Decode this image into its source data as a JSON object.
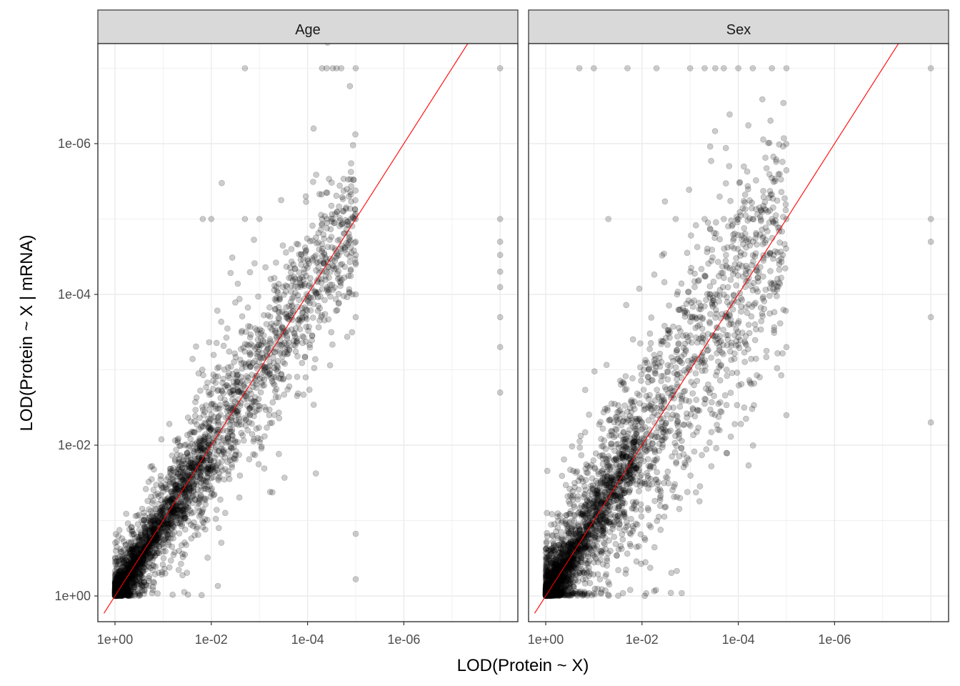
{
  "chart_data": {
    "type": "scatter",
    "xlabel": "LOD(Protein ~ X)",
    "ylabel": "LOD(Protein ~ X | mRNA)",
    "x_scale": "log10_reversed",
    "y_scale": "log10_reversed",
    "x_ticks": [
      "1e+00",
      "1e-02",
      "1e-04",
      "1e-06"
    ],
    "y_ticks": [
      "1e+00",
      "1e-02",
      "1e-04",
      "1e-06"
    ],
    "xlim": [
      1.7,
      1.7e-08
    ],
    "ylim": [
      2.5,
      3.3e-08
    ],
    "grid": true,
    "reference_line": {
      "slope": 1,
      "intercept": 0,
      "color": "#ff0000"
    },
    "point_color": "#000000",
    "point_alpha": 0.2,
    "panels": [
      {
        "title": "Age",
        "clusters": [
          {
            "x_range": [
              1,
              1e-05
            ],
            "y_center_ratio": 1,
            "spread_decades": 0.45,
            "count": 1900
          },
          {
            "x_range": [
              1,
              0.01
            ],
            "y_center_ratio": 1,
            "spread_decades": 0.2,
            "count": 700
          },
          {
            "x_range": [
              1,
              1e-05
            ],
            "y_center_ratio": 1,
            "spread_decades": 0.9,
            "count": 450
          }
        ],
        "extreme_points": [
          {
            "x": 0.002,
            "y": 1e-07
          },
          {
            "x": 2e-05,
            "y": 1e-07
          },
          {
            "x": 2.5e-05,
            "y": 1e-07
          },
          {
            "x": 3e-05,
            "y": 1e-07
          },
          {
            "x": 4e-05,
            "y": 1e-07
          },
          {
            "x": 5e-05,
            "y": 1e-07
          },
          {
            "x": 1e-05,
            "y": 1e-07
          },
          {
            "x": 1e-08,
            "y": 1e-07
          },
          {
            "x": 0.01,
            "y": 1e-05
          },
          {
            "x": 0.015,
            "y": 1e-05
          },
          {
            "x": 0.002,
            "y": 1e-05
          },
          {
            "x": 0.001,
            "y": 1e-05
          },
          {
            "x": 3e-05,
            "y": 1e-05
          },
          {
            "x": 4e-05,
            "y": 1e-05
          },
          {
            "x": 5e-05,
            "y": 1e-05
          },
          {
            "x": 1e-05,
            "y": 1e-05
          },
          {
            "x": 1e-08,
            "y": 1e-05
          },
          {
            "x": 1e-05,
            "y": 2e-05
          },
          {
            "x": 1e-05,
            "y": 3e-05
          },
          {
            "x": 1e-05,
            "y": 4e-05
          },
          {
            "x": 1e-05,
            "y": 0.0001
          },
          {
            "x": 1e-05,
            "y": 0.0002
          },
          {
            "x": 1e-08,
            "y": 2e-05
          },
          {
            "x": 1e-08,
            "y": 3e-05
          },
          {
            "x": 1e-08,
            "y": 5e-05
          },
          {
            "x": 1e-08,
            "y": 8e-05
          },
          {
            "x": 1e-08,
            "y": 0.0002
          },
          {
            "x": 1e-08,
            "y": 0.0005
          },
          {
            "x": 1e-08,
            "y": 0.002
          },
          {
            "x": 1e-05,
            "y": 0.6
          },
          {
            "x": 1e-05,
            "y": 0.15
          }
        ]
      },
      {
        "title": "Sex",
        "clusters": [
          {
            "x_range": [
              1,
              1e-05
            ],
            "y_center_ratio": 1,
            "spread_decades": 0.7,
            "count": 1700
          },
          {
            "x_range": [
              1,
              0.01
            ],
            "y_center_ratio": 1,
            "spread_decades": 0.25,
            "count": 900
          },
          {
            "x_range": [
              1,
              1e-05
            ],
            "y_center_ratio": 1,
            "spread_decades": 1.2,
            "count": 500
          }
        ],
        "extreme_points": [
          {
            "x": 0.2,
            "y": 1e-07
          },
          {
            "x": 0.1,
            "y": 1e-07
          },
          {
            "x": 0.02,
            "y": 1e-07
          },
          {
            "x": 0.005,
            "y": 1e-07
          },
          {
            "x": 0.001,
            "y": 1e-07
          },
          {
            "x": 0.0005,
            "y": 1e-07
          },
          {
            "x": 0.0003,
            "y": 1e-07
          },
          {
            "x": 0.0002,
            "y": 1e-07
          },
          {
            "x": 0.0001,
            "y": 1e-07
          },
          {
            "x": 5e-05,
            "y": 1e-07
          },
          {
            "x": 2e-05,
            "y": 1e-07
          },
          {
            "x": 1e-05,
            "y": 1e-07
          },
          {
            "x": 1e-08,
            "y": 1e-07
          },
          {
            "x": 0.05,
            "y": 1e-05
          },
          {
            "x": 0.002,
            "y": 1e-05
          },
          {
            "x": 0.0005,
            "y": 1e-05
          },
          {
            "x": 0.0002,
            "y": 1e-05
          },
          {
            "x": 0.0001,
            "y": 1e-05
          },
          {
            "x": 5e-05,
            "y": 1e-05
          },
          {
            "x": 2e-05,
            "y": 1e-05
          },
          {
            "x": 1e-05,
            "y": 1e-05
          },
          {
            "x": 1e-08,
            "y": 1e-05
          },
          {
            "x": 1e-08,
            "y": 2e-05
          },
          {
            "x": 1e-08,
            "y": 0.0002
          },
          {
            "x": 1e-08,
            "y": 0.005
          },
          {
            "x": 1e-05,
            "y": 0.004
          },
          {
            "x": 1e-05,
            "y": 0.0005
          }
        ]
      }
    ]
  }
}
